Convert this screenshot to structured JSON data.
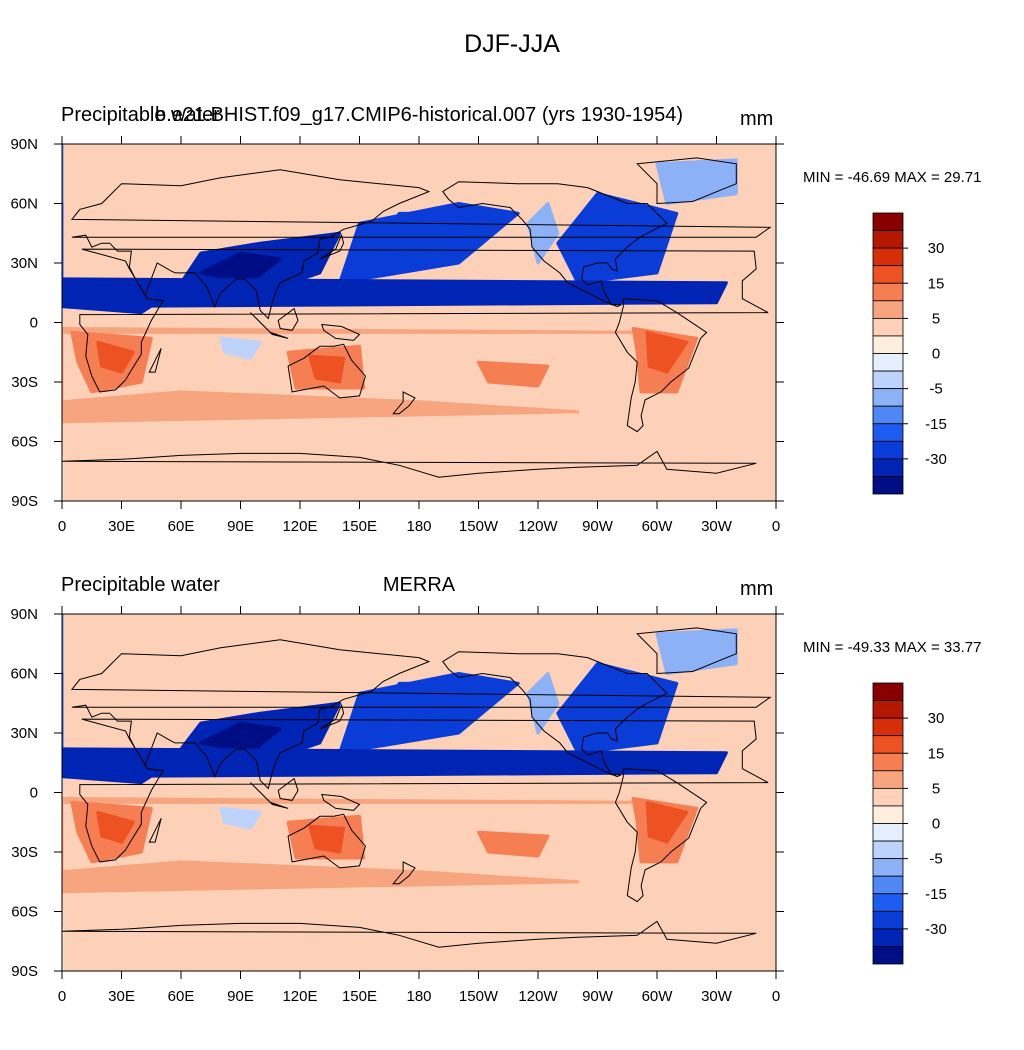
{
  "title": "DJF-JJA",
  "colors": {
    "cold_ocean": "#3f74e8",
    "deep_blue": "#0a2fc4",
    "land_blue": "#5f90f2",
    "warm": "#f2a57f",
    "hot": "#d8401c",
    "light": "#fde2d2",
    "coast": "#000000"
  },
  "colorbar": {
    "colors": [
      "#000e86",
      "#0025b5",
      "#0a3dd8",
      "#1c5cf0",
      "#4f88f5",
      "#8cb1f7",
      "#bdd3fb",
      "#e4efff",
      "#fdeede",
      "#fdd0b8",
      "#f7a57e",
      "#f57e52",
      "#ee5222",
      "#d72e0a",
      "#b51800",
      "#880000"
    ],
    "tick_labels": [
      "-30",
      "-15",
      "-5",
      "0",
      "5",
      "15",
      "30"
    ]
  },
  "chart_data": [
    {
      "type": "heatmap",
      "label_left": "Precipitable water",
      "label_center": "b.e21.BHIST.f09_g17.CMIP6-historical.007 (yrs 1930-1954)",
      "units": "mm",
      "min_max": "MIN = -46.69 MAX =  29.71",
      "x_ticks": [
        "0",
        "30E",
        "60E",
        "90E",
        "120E",
        "150E",
        "180",
        "150W",
        "120W",
        "90W",
        "60W",
        "30W",
        "0"
      ],
      "y_ticks": [
        "90N",
        "60N",
        "30N",
        "0",
        "30S",
        "60S",
        "90S"
      ],
      "ylim": [
        -90,
        90
      ]
    },
    {
      "type": "heatmap",
      "label_left": "Precipitable water",
      "label_center": "MERRA",
      "units": "mm",
      "min_max": "MIN = -49.33 MAX =  33.77",
      "x_ticks": [
        "0",
        "30E",
        "60E",
        "90E",
        "120E",
        "150E",
        "180",
        "150W",
        "120W",
        "90W",
        "60W",
        "30W",
        "0"
      ],
      "y_ticks": [
        "90N",
        "60N",
        "30N",
        "0",
        "30S",
        "60S",
        "90S"
      ],
      "ylim": [
        -90,
        90
      ]
    }
  ]
}
